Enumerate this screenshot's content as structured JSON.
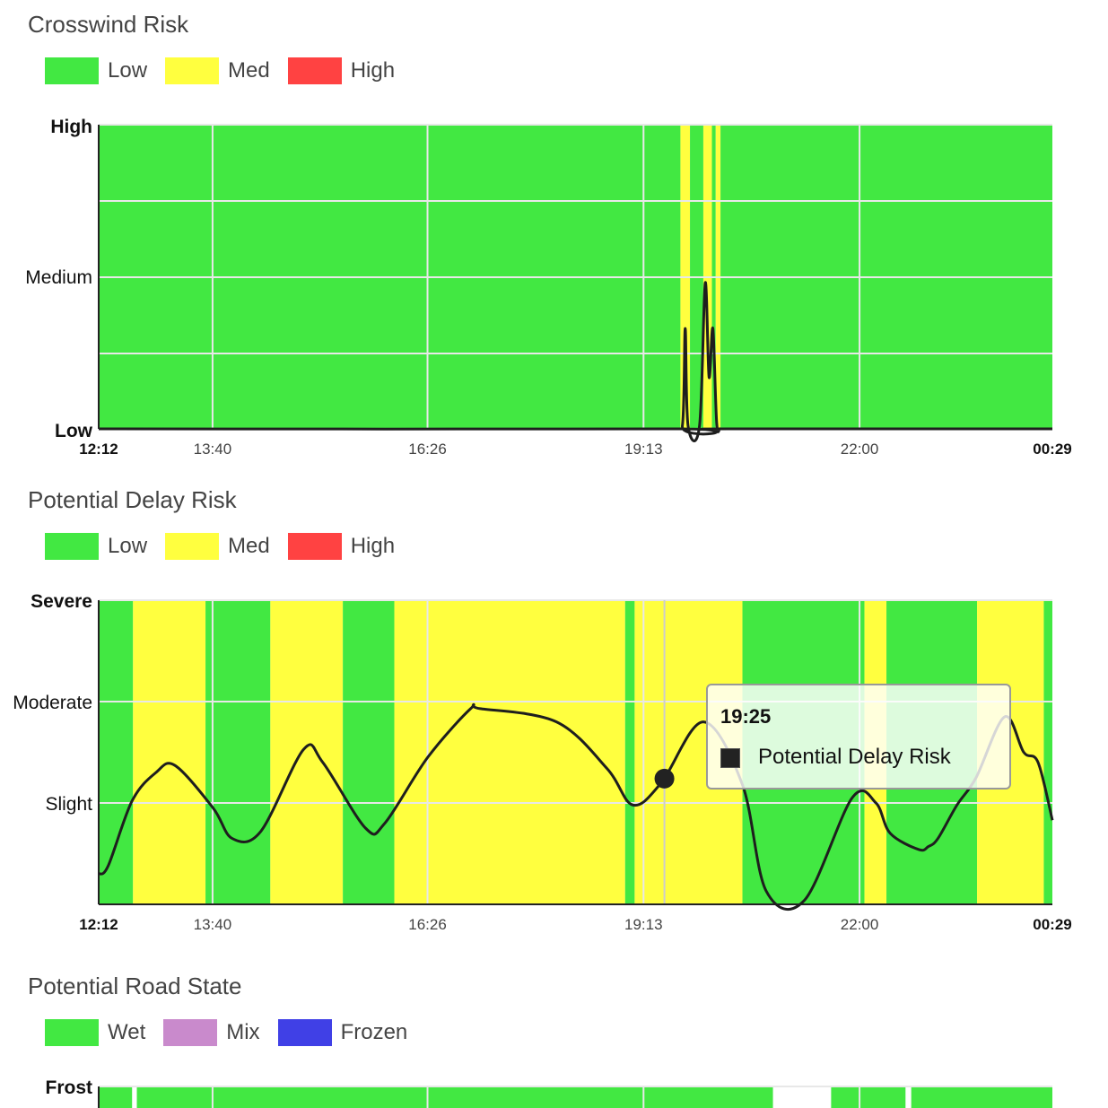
{
  "colors": {
    "low": "#42e842",
    "med": "#ffff3f",
    "high": "#ff4242",
    "wet": "#42e842",
    "mix": "#c98acc",
    "frozen": "#4040e6",
    "line": "#1e1e1e"
  },
  "crosswind": {
    "title": "Crosswind Risk",
    "legend": [
      {
        "label": "Low",
        "color": "#42e842"
      },
      {
        "label": "Med",
        "color": "#ffff3f"
      },
      {
        "label": "High",
        "color": "#ff4242"
      }
    ],
    "y_labels": [
      "High",
      "Medium",
      "Low"
    ]
  },
  "delay": {
    "title": "Potential Delay Risk",
    "legend": [
      {
        "label": "Low",
        "color": "#42e842"
      },
      {
        "label": "Med",
        "color": "#ffff3f"
      },
      {
        "label": "High",
        "color": "#ff4242"
      }
    ],
    "y_labels": [
      "Severe",
      "Moderate",
      "Slight"
    ]
  },
  "road": {
    "title": "Potential Road State",
    "legend": [
      {
        "label": "Wet",
        "color": "#42e842"
      },
      {
        "label": "Mix",
        "color": "#c98acc"
      },
      {
        "label": "Frozen",
        "color": "#4040e6"
      }
    ],
    "y_labels": [
      "Frost"
    ]
  },
  "tooltip": {
    "time": "19:25",
    "series": "Potential Delay Risk"
  },
  "chart_data": [
    {
      "type": "line",
      "title": "Crosswind Risk",
      "x_ticks": [
        "12:12",
        "13:40",
        "16:26",
        "19:13",
        "22:00",
        "00:29"
      ],
      "y_ticks": [
        "Low",
        "Medium",
        "High"
      ],
      "ylim": [
        0,
        1
      ],
      "background_bands": [
        {
          "x": [
            0,
            0.61
          ],
          "level": "Low"
        },
        {
          "x": [
            0.61,
            0.62
          ],
          "level": "Med"
        },
        {
          "x": [
            0.62,
            0.634
          ],
          "level": "Low"
        },
        {
          "x": [
            0.634,
            0.643
          ],
          "level": "Med"
        },
        {
          "x": [
            0.643,
            0.647
          ],
          "level": "Low"
        },
        {
          "x": [
            0.647,
            0.652
          ],
          "level": "Med"
        },
        {
          "x": [
            0.652,
            1
          ],
          "level": "Low"
        }
      ],
      "series": [
        {
          "x": [
            0,
            0.6,
            0.612,
            0.615,
            0.618,
            0.63,
            0.636,
            0.64,
            0.644,
            0.648,
            0.652,
            0.66,
            1
          ],
          "y": [
            0,
            0,
            0.01,
            0.33,
            0.01,
            0.01,
            0.48,
            0.17,
            0.33,
            0.02,
            0,
            0,
            0
          ]
        }
      ]
    },
    {
      "type": "line",
      "title": "Potential Delay Risk",
      "x_ticks": [
        "12:12",
        "13:40",
        "16:26",
        "19:13",
        "22:00",
        "00:29"
      ],
      "y_ticks": [
        "Slight",
        "Moderate",
        "Severe"
      ],
      "ylim": [
        0,
        3
      ],
      "background_bands": [
        {
          "x": [
            0,
            0.036
          ],
          "level": "Low"
        },
        {
          "x": [
            0.036,
            0.112
          ],
          "level": "Med"
        },
        {
          "x": [
            0.112,
            0.12
          ],
          "level": "Low"
        },
        {
          "x": [
            0.12,
            0.18
          ],
          "level": "Low"
        },
        {
          "x": [
            0.18,
            0.256
          ],
          "level": "Med"
        },
        {
          "x": [
            0.256,
            0.31
          ],
          "level": "Low"
        },
        {
          "x": [
            0.31,
            0.552
          ],
          "level": "Med"
        },
        {
          "x": [
            0.552,
            0.562
          ],
          "level": "Low"
        },
        {
          "x": [
            0.562,
            0.675
          ],
          "level": "Med"
        },
        {
          "x": [
            0.675,
            0.803
          ],
          "level": "Low"
        },
        {
          "x": [
            0.803,
            0.826
          ],
          "level": "Med"
        },
        {
          "x": [
            0.826,
            0.921
          ],
          "level": "Low"
        },
        {
          "x": [
            0.921,
            0.991
          ],
          "level": "Med"
        },
        {
          "x": [
            0.991,
            1
          ],
          "level": "Low"
        }
      ],
      "series": [
        {
          "name": "Potential Delay Risk",
          "x": [
            0,
            0.01,
            0.035,
            0.06,
            0.08,
            0.12,
            0.14,
            0.17,
            0.215,
            0.235,
            0.28,
            0.3,
            0.345,
            0.39,
            0.4,
            0.48,
            0.533,
            0.56,
            0.59,
            0.634,
            0.675,
            0.7,
            0.74,
            0.79,
            0.815,
            0.83,
            0.86,
            0.87,
            0.88,
            0.9,
            0.92,
            0.95,
            0.97,
            0.985,
            1
          ],
          "y": [
            0.3,
            0.38,
            1.02,
            1.3,
            1.37,
            0.95,
            0.65,
            0.72,
            1.53,
            1.4,
            0.75,
            0.8,
            1.45,
            1.93,
            1.93,
            1.8,
            1.34,
            0.98,
            1.2,
            1.8,
            1.18,
            0.13,
            0.04,
            1.05,
            1.0,
            0.7,
            0.54,
            0.57,
            0.65,
            0.98,
            1.25,
            1.85,
            1.5,
            1.4,
            0.83
          ]
        }
      ]
    },
    {
      "type": "heatmap",
      "title": "Potential Road State",
      "y_ticks": [
        "Frost"
      ],
      "background_bands": [
        {
          "x": [
            0,
            0.035
          ],
          "level": "Wet"
        },
        {
          "x": [
            0.04,
            0.707
          ],
          "level": "Wet"
        },
        {
          "x": [
            0.768,
            0.846
          ],
          "level": "Wet"
        },
        {
          "x": [
            0.852,
            1
          ],
          "level": "Wet"
        }
      ]
    }
  ]
}
